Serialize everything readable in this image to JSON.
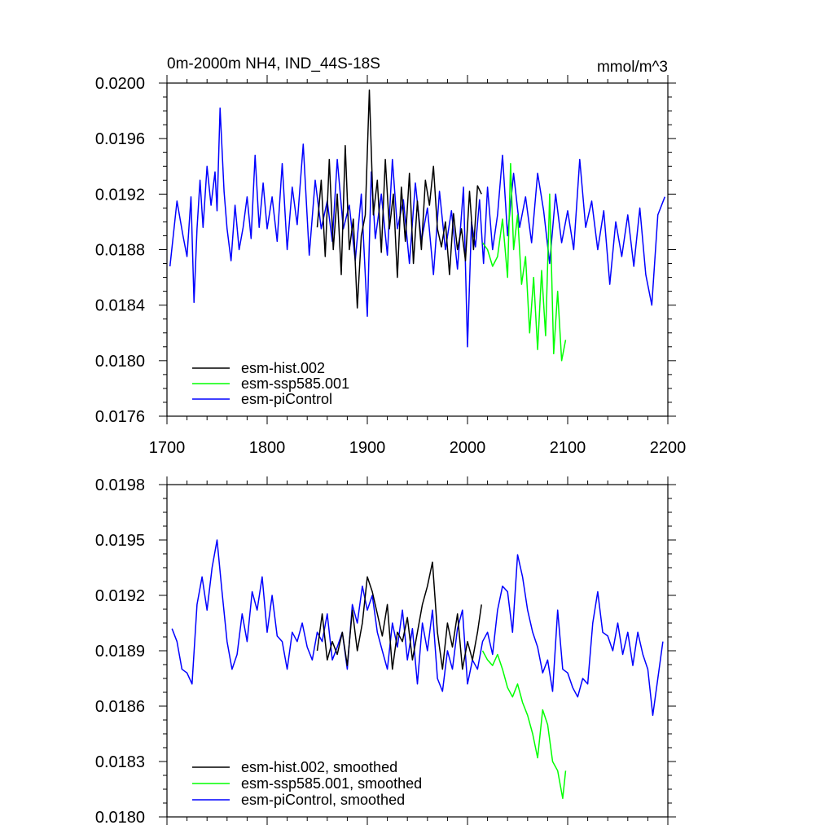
{
  "chart_data": [
    {
      "type": "line",
      "panel": "raw",
      "title": "0m-2000m NH4, IND_44S-18S",
      "units": "mmol/m^3",
      "xlim": [
        1700,
        2200
      ],
      "ylim": [
        0.0176,
        0.02
      ],
      "xticks": [
        1700,
        1800,
        1900,
        2000,
        2100,
        2200
      ],
      "xtick_labels": [
        "1700",
        "1800",
        "1900",
        "2000",
        "2100",
        "2200"
      ],
      "yticks": [
        0.0176,
        0.018,
        0.0184,
        0.0188,
        0.0192,
        0.0196,
        0.02
      ],
      "ytick_labels": [
        "0.0176",
        "0.0180",
        "0.0184",
        "0.0188",
        "0.0192",
        "0.0196",
        "0.0200"
      ],
      "legend": [
        "esm-hist.002",
        "esm-ssp585.001",
        "esm-piControl"
      ],
      "series": [
        {
          "name": "esm-piControl",
          "color": "#0000ff",
          "x": [
            1703,
            1710,
            1716,
            1720,
            1724,
            1727,
            1730,
            1733,
            1736,
            1740,
            1744,
            1748,
            1750,
            1753,
            1757,
            1760,
            1764,
            1768,
            1772,
            1776,
            1780,
            1784,
            1788,
            1792,
            1796,
            1800,
            1805,
            1810,
            1815,
            1820,
            1825,
            1830,
            1836,
            1842,
            1848,
            1854,
            1860,
            1865,
            1870,
            1876,
            1882,
            1888,
            1894,
            1900,
            1904,
            1908,
            1914,
            1920,
            1925,
            1930,
            1936,
            1942,
            1948,
            1954,
            1960,
            1966,
            1972,
            1978,
            1984,
            1990,
            1996,
            2000,
            2004,
            2008,
            2012,
            2016,
            2020,
            2025,
            2030,
            2035,
            2040,
            2046,
            2052,
            2058,
            2064,
            2070,
            2076,
            2082,
            2088,
            2094,
            2100,
            2106,
            2112,
            2118,
            2124,
            2130,
            2136,
            2142,
            2148,
            2154,
            2160,
            2166,
            2172,
            2178,
            2184,
            2190,
            2197
          ],
          "y": [
            0.01868,
            0.01915,
            0.0189,
            0.01875,
            0.01918,
            0.01842,
            0.01895,
            0.0193,
            0.01896,
            0.0194,
            0.01912,
            0.01936,
            0.01908,
            0.01982,
            0.01922,
            0.01895,
            0.01872,
            0.01912,
            0.0188,
            0.01896,
            0.01918,
            0.01888,
            0.01948,
            0.01896,
            0.01928,
            0.01895,
            0.01918,
            0.01886,
            0.01942,
            0.0188,
            0.01925,
            0.01898,
            0.01956,
            0.01876,
            0.0193,
            0.01895,
            0.01915,
            0.01886,
            0.01945,
            0.01895,
            0.01912,
            0.01872,
            0.0192,
            0.01832,
            0.01936,
            0.01888,
            0.0192,
            0.01876,
            0.01945,
            0.01895,
            0.01916,
            0.0187,
            0.01928,
            0.01886,
            0.0191,
            0.01862,
            0.01922,
            0.0188,
            0.01908,
            0.01866,
            0.01925,
            0.0181,
            0.019,
            0.01882,
            0.01916,
            0.0187,
            0.01925,
            0.0188,
            0.01905,
            0.01948,
            0.0189,
            0.01935,
            0.01896,
            0.01918,
            0.01885,
            0.01935,
            0.01908,
            0.0187,
            0.0192,
            0.01885,
            0.01908,
            0.0188,
            0.01945,
            0.01896,
            0.01915,
            0.0188,
            0.01908,
            0.01855,
            0.019,
            0.01875,
            0.01905,
            0.01868,
            0.0191,
            0.01862,
            0.0184,
            0.01905,
            0.01918
          ]
        },
        {
          "name": "esm-hist.002",
          "color": "#000000",
          "x": [
            1850,
            1854,
            1858,
            1862,
            1866,
            1870,
            1874,
            1878,
            1882,
            1886,
            1890,
            1894,
            1898,
            1902,
            1906,
            1910,
            1914,
            1918,
            1922,
            1926,
            1930,
            1934,
            1938,
            1942,
            1946,
            1950,
            1954,
            1958,
            1962,
            1966,
            1970,
            1974,
            1978,
            1982,
            1986,
            1990,
            1994,
            1998,
            2002,
            2006,
            2010,
            2014
          ],
          "y": [
            0.01896,
            0.0193,
            0.01875,
            0.01945,
            0.0188,
            0.0192,
            0.01862,
            0.01955,
            0.0188,
            0.01902,
            0.01838,
            0.0189,
            0.01905,
            0.01995,
            0.01905,
            0.0193,
            0.01878,
            0.01945,
            0.01895,
            0.0192,
            0.0186,
            0.01925,
            0.01886,
            0.01935,
            0.0187,
            0.01915,
            0.0188,
            0.0193,
            0.01912,
            0.0194,
            0.01895,
            0.01882,
            0.019,
            0.01862,
            0.01906,
            0.0188,
            0.01895,
            0.01872,
            0.01922,
            0.0188,
            0.01926,
            0.0192
          ]
        },
        {
          "name": "esm-ssp585.001",
          "color": "#00ff00",
          "x": [
            2015,
            2020,
            2025,
            2030,
            2035,
            2040,
            2043,
            2046,
            2050,
            2054,
            2058,
            2062,
            2066,
            2070,
            2074,
            2078,
            2082,
            2086,
            2090,
            2094,
            2098
          ],
          "y": [
            0.01885,
            0.0188,
            0.01868,
            0.01875,
            0.01902,
            0.0186,
            0.01942,
            0.0188,
            0.01905,
            0.01855,
            0.01875,
            0.0182,
            0.0186,
            0.01808,
            0.01865,
            0.01818,
            0.0192,
            0.01805,
            0.0185,
            0.018,
            0.01815
          ]
        }
      ]
    },
    {
      "type": "line",
      "panel": "smoothed",
      "title": "",
      "xlim": [
        1700,
        2200
      ],
      "ylim": [
        0.018,
        0.0198
      ],
      "xticks": [
        1700,
        1800,
        1900,
        2000,
        2100,
        2200
      ],
      "yticks": [
        0.018,
        0.0183,
        0.0186,
        0.0189,
        0.0192,
        0.0195,
        0.0198
      ],
      "ytick_labels": [
        "0.0180",
        "0.0183",
        "0.0186",
        "0.0189",
        "0.0192",
        "0.0195",
        "0.0198"
      ],
      "legend": [
        "esm-hist.002, smoothed",
        "esm-ssp585.001, smoothed",
        "esm-piControl, smoothed"
      ],
      "series": [
        {
          "name": "esm-piControl, smoothed",
          "color": "#0000ff",
          "x": [
            1705,
            1710,
            1715,
            1720,
            1725,
            1730,
            1735,
            1740,
            1745,
            1750,
            1755,
            1760,
            1765,
            1770,
            1775,
            1780,
            1785,
            1790,
            1795,
            1800,
            1805,
            1810,
            1815,
            1820,
            1825,
            1830,
            1835,
            1840,
            1845,
            1850,
            1855,
            1860,
            1865,
            1870,
            1875,
            1880,
            1885,
            1890,
            1895,
            1900,
            1905,
            1910,
            1915,
            1920,
            1925,
            1930,
            1935,
            1940,
            1945,
            1950,
            1955,
            1960,
            1965,
            1970,
            1975,
            1980,
            1985,
            1990,
            1995,
            2000,
            2005,
            2010,
            2015,
            2020,
            2025,
            2030,
            2035,
            2040,
            2045,
            2050,
            2055,
            2060,
            2065,
            2070,
            2075,
            2080,
            2085,
            2090,
            2095,
            2100,
            2105,
            2110,
            2115,
            2120,
            2125,
            2130,
            2135,
            2140,
            2145,
            2150,
            2155,
            2160,
            2165,
            2170,
            2175,
            2180,
            2185,
            2190,
            2195
          ],
          "y": [
            0.01902,
            0.01895,
            0.0188,
            0.01878,
            0.01872,
            0.01915,
            0.0193,
            0.01912,
            0.01935,
            0.0195,
            0.01922,
            0.01895,
            0.0188,
            0.01888,
            0.0191,
            0.01895,
            0.01922,
            0.01912,
            0.0193,
            0.019,
            0.0192,
            0.01898,
            0.01895,
            0.0188,
            0.019,
            0.01895,
            0.01905,
            0.01892,
            0.01885,
            0.019,
            0.01895,
            0.0191,
            0.01885,
            0.01892,
            0.019,
            0.0188,
            0.01915,
            0.01905,
            0.01925,
            0.01912,
            0.0192,
            0.019,
            0.0189,
            0.0188,
            0.01905,
            0.01892,
            0.01912,
            0.01885,
            0.01902,
            0.01872,
            0.01905,
            0.0189,
            0.01912,
            0.01875,
            0.01868,
            0.0189,
            0.0188,
            0.01902,
            0.01912,
            0.01872,
            0.01885,
            0.0188,
            0.01895,
            0.019,
            0.01888,
            0.01912,
            0.01925,
            0.01922,
            0.019,
            0.01942,
            0.0193,
            0.01912,
            0.019,
            0.01892,
            0.01878,
            0.01885,
            0.01868,
            0.01912,
            0.0188,
            0.01878,
            0.0187,
            0.01865,
            0.01875,
            0.01872,
            0.01905,
            0.01922,
            0.019,
            0.01898,
            0.0189,
            0.01905,
            0.01888,
            0.019,
            0.01882,
            0.019,
            0.01888,
            0.0188,
            0.01855,
            0.01875,
            0.01895
          ]
        },
        {
          "name": "esm-hist.002, smoothed",
          "color": "#000000",
          "x": [
            1850,
            1855,
            1860,
            1865,
            1870,
            1875,
            1880,
            1885,
            1890,
            1895,
            1900,
            1905,
            1910,
            1915,
            1920,
            1925,
            1930,
            1935,
            1940,
            1945,
            1950,
            1955,
            1960,
            1965,
            1970,
            1975,
            1980,
            1985,
            1990,
            1995,
            2000,
            2005,
            2010,
            2014
          ],
          "y": [
            0.0189,
            0.0191,
            0.01885,
            0.01895,
            0.01888,
            0.019,
            0.01882,
            0.01912,
            0.0189,
            0.01905,
            0.0193,
            0.01922,
            0.0191,
            0.01898,
            0.01915,
            0.0188,
            0.019,
            0.01895,
            0.01908,
            0.01885,
            0.019,
            0.01915,
            0.01925,
            0.01938,
            0.019,
            0.0188,
            0.01905,
            0.01892,
            0.0191,
            0.0188,
            0.01895,
            0.01885,
            0.019,
            0.01915
          ]
        },
        {
          "name": "esm-ssp585.001, smoothed",
          "color": "#00ff00",
          "x": [
            2015,
            2020,
            2025,
            2030,
            2035,
            2040,
            2045,
            2050,
            2055,
            2060,
            2065,
            2070,
            2075,
            2080,
            2085,
            2090,
            2095,
            2098
          ],
          "y": [
            0.0189,
            0.01885,
            0.01882,
            0.01888,
            0.0188,
            0.0187,
            0.01865,
            0.01872,
            0.01862,
            0.01855,
            0.01845,
            0.01832,
            0.01858,
            0.0185,
            0.0183,
            0.01825,
            0.0181,
            0.01825
          ]
        }
      ]
    }
  ]
}
